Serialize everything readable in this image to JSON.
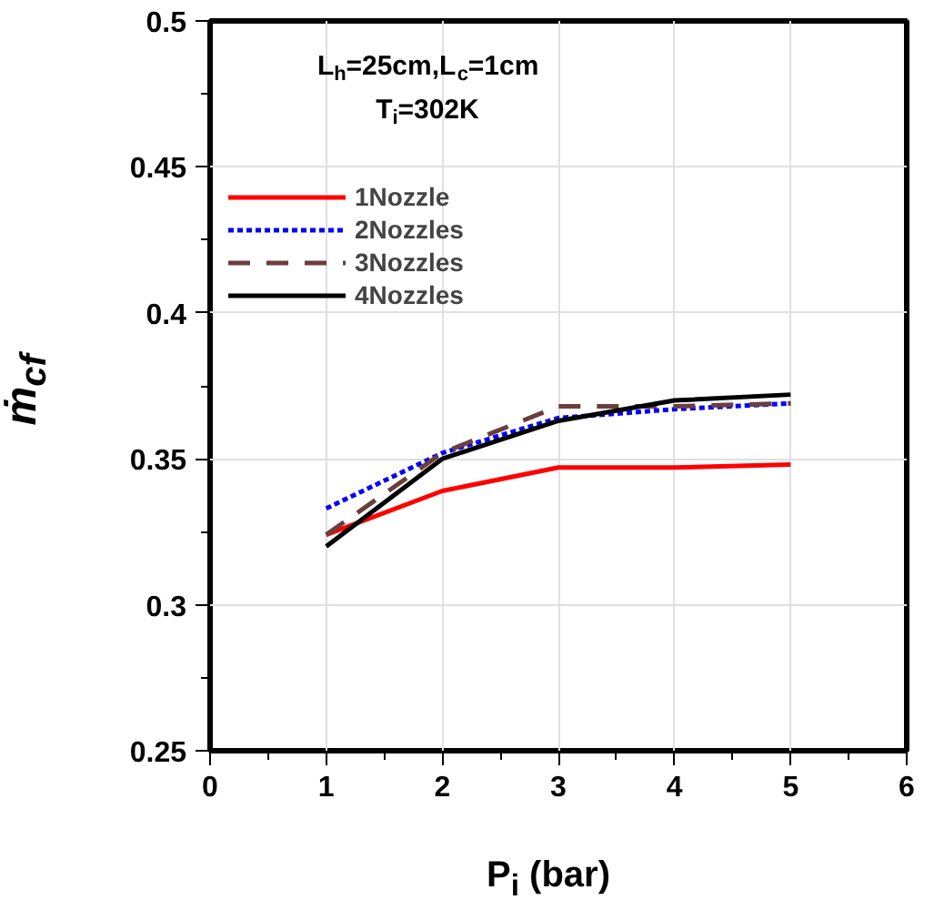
{
  "chart_data": {
    "type": "line",
    "xlabel": "P$_{i}$ (bar)",
    "ylabel": "ṁ$_{cf}$",
    "annotations": [
      "L$_{h}$=25cm,L$_{c}$=1cm",
      "T$_{i}$=302K"
    ],
    "x": [
      1,
      2,
      3,
      4,
      5
    ],
    "series": [
      {
        "name": "1Nozzle",
        "color": "#ff0000",
        "line_style": "solid",
        "values": [
          0.324,
          0.339,
          0.347,
          0.347,
          0.348
        ]
      },
      {
        "name": "2Nozzles",
        "color": "#0000ff",
        "line_style": "dotted",
        "values": [
          0.333,
          0.352,
          0.364,
          0.367,
          0.369
        ]
      },
      {
        "name": "3Nozzles",
        "color": "#6b3e3e",
        "line_style": "dashed",
        "values": [
          0.324,
          0.352,
          0.368,
          0.368,
          0.369
        ]
      },
      {
        "name": "4Nozzles",
        "color": "#000000",
        "line_style": "solid",
        "values": [
          0.32,
          0.35,
          0.363,
          0.37,
          0.372
        ]
      }
    ],
    "xlim": [
      0,
      6
    ],
    "ylim": [
      0.25,
      0.5
    ],
    "xticks": [
      0,
      1,
      2,
      3,
      4,
      5,
      6
    ],
    "yticks": [
      0.25,
      0.3,
      0.35,
      0.4,
      0.45,
      0.5
    ],
    "grid": true,
    "legend": "top left",
    "marker": "none"
  }
}
